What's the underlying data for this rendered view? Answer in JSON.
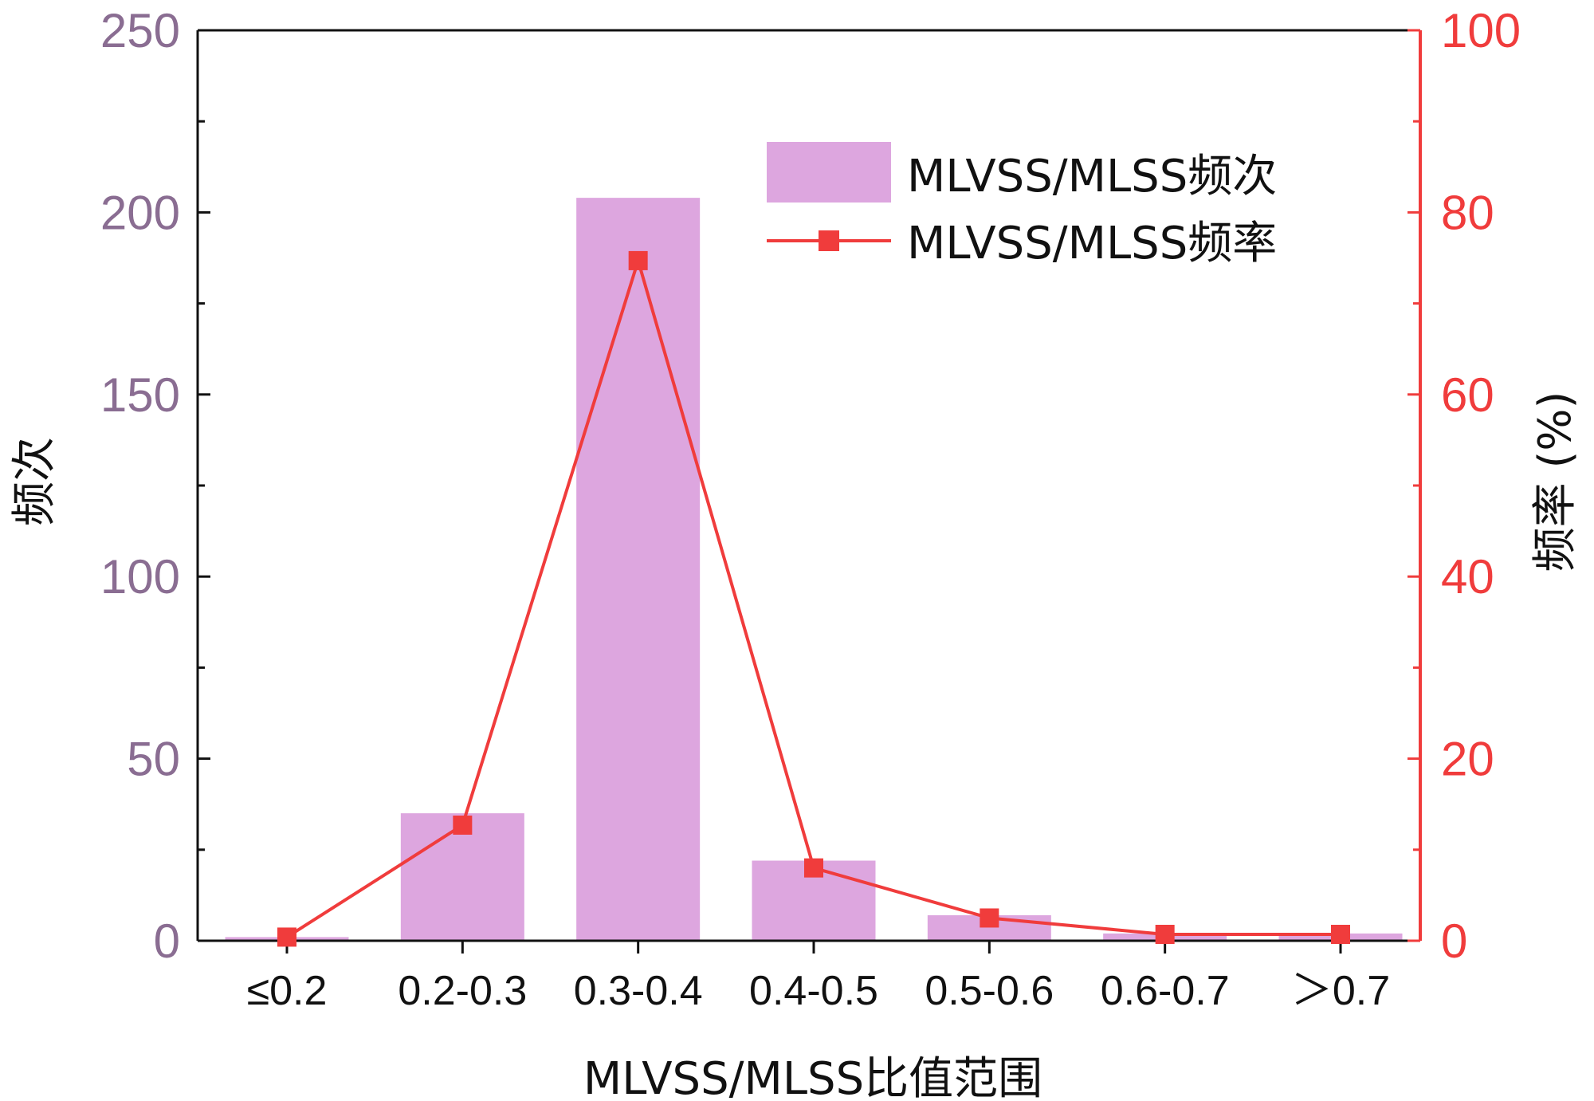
{
  "chart_data": {
    "type": "bar+line",
    "categories": [
      "≤0.2",
      "0.2-0.3",
      "0.3-0.4",
      "0.4-0.5",
      "0.5-0.6",
      "0.6-0.7",
      "＞0.7"
    ],
    "series": [
      {
        "name": "MLVSS/MLSS频次",
        "type": "bar",
        "axis": "left",
        "values": [
          1,
          35,
          204,
          22,
          7,
          2,
          2
        ]
      },
      {
        "name": "MLVSS/MLSS频率",
        "type": "line",
        "axis": "right",
        "marker": "square",
        "values": [
          0.4,
          12.7,
          74.7,
          8.0,
          2.5,
          0.7,
          0.7
        ]
      }
    ],
    "xlabel": "MLVSS/MLSS比值范围",
    "ylabel_left": "频次",
    "ylabel_right": "频率 (%)",
    "ylim_left": [
      0,
      250
    ],
    "ylim_right": [
      0,
      100
    ],
    "yticks_left": [
      "0",
      "50",
      "100",
      "150",
      "200",
      "250"
    ],
    "yticks_right": [
      "0",
      "20",
      "40",
      "60",
      "80",
      "100"
    ],
    "legend_position": "top-right",
    "grid": false,
    "colors": {
      "bar": "#dda6df",
      "line": "#f03c3c",
      "left_axis": "#8a6d92",
      "right_axis": "#f03c3c",
      "frame": "#111111"
    }
  }
}
